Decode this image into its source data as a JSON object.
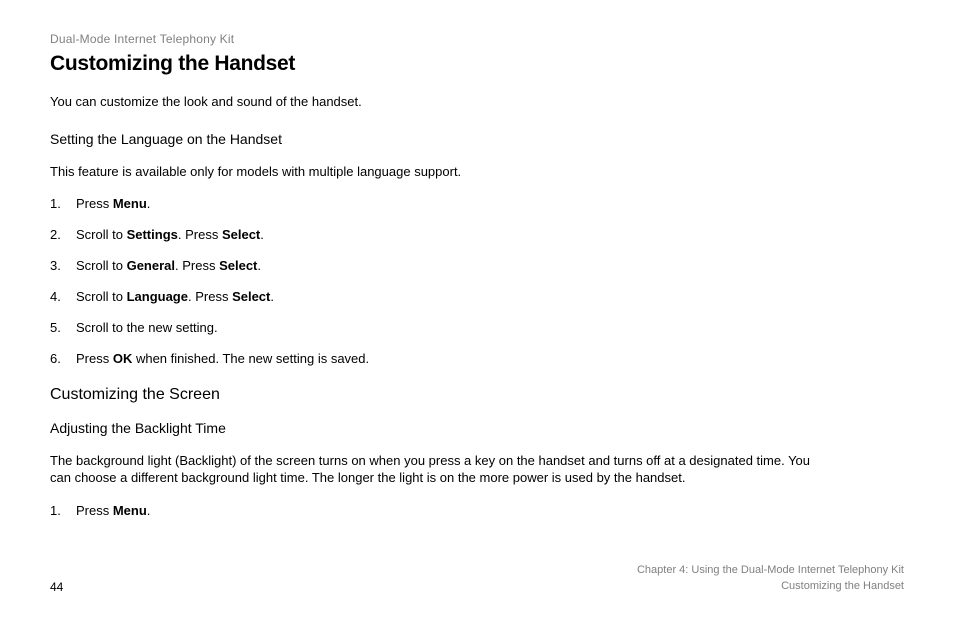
{
  "header": {
    "product_line": "Dual-Mode Internet Telephony Kit"
  },
  "title": "Customizing the Handset",
  "intro": "You can customize the look and sound of the handset.",
  "section1": {
    "heading": "Setting the Language on the Handset",
    "note": "This feature is available only for models with multiple language support.",
    "steps": {
      "s1a": "Press ",
      "s1b": "Menu",
      "s1c": ".",
      "s2a": "Scroll to ",
      "s2b": "Settings",
      "s2c": ". Press ",
      "s2d": "Select",
      "s2e": ".",
      "s3a": "Scroll to ",
      "s3b": "General",
      "s3c": ". Press ",
      "s3d": "Select",
      "s3e": ".",
      "s4a": "Scroll to ",
      "s4b": "Language",
      "s4c": ". Press ",
      "s4d": "Select",
      "s4e": ".",
      "s5": "Scroll to the new setting.",
      "s6a": "Press ",
      "s6b": "OK",
      "s6c": " when finished. The new setting is saved."
    }
  },
  "section2": {
    "heading": "Customizing the Screen",
    "sub_heading": "Adjusting the Backlight Time",
    "body": "The background light (Backlight) of the screen turns on when you press a key on the handset and turns off at a designated time. You can choose a different background light time. The longer the light is on the more power is used by the handset.",
    "steps": {
      "s1a": "Press ",
      "s1b": "Menu",
      "s1c": "."
    }
  },
  "footer": {
    "page": "44",
    "chapter_line": "Chapter 4: Using the Dual-Mode Internet Telephony Kit",
    "section_line": "Customizing the Handset"
  }
}
